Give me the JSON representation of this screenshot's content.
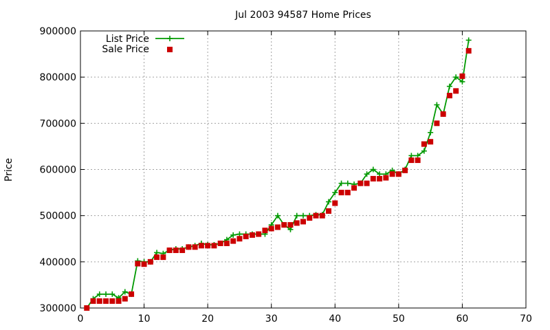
{
  "chart_data": {
    "type": "line",
    "title": "Jul 2003 94587 Home Prices",
    "xlabel": "",
    "ylabel": "Price",
    "xlim": [
      0,
      70
    ],
    "ylim": [
      300000,
      900000
    ],
    "x_ticks": [
      "0",
      "10",
      "20",
      "30",
      "40",
      "50",
      "60",
      "70"
    ],
    "y_ticks": [
      "300000",
      "400000",
      "500000",
      "600000",
      "700000",
      "800000",
      "900000"
    ],
    "grid": true,
    "legend_position": "top-left",
    "x": [
      1,
      2,
      3,
      4,
      5,
      6,
      7,
      8,
      9,
      10,
      11,
      12,
      13,
      14,
      15,
      16,
      17,
      18,
      19,
      20,
      21,
      22,
      23,
      24,
      25,
      26,
      27,
      28,
      29,
      30,
      31,
      32,
      33,
      34,
      35,
      36,
      37,
      38,
      39,
      40,
      41,
      42,
      43,
      44,
      45,
      46,
      47,
      48,
      49,
      50,
      51,
      52,
      53,
      54,
      55,
      56,
      57,
      58,
      59,
      60,
      61
    ],
    "series": [
      {
        "name": "List Price",
        "style": "line-with-plus-markers",
        "color": "#009900",
        "values": [
          300000,
          320000,
          330000,
          330000,
          330000,
          322000,
          335000,
          330000,
          402000,
          400000,
          400000,
          420000,
          418000,
          425000,
          428000,
          428000,
          432000,
          435000,
          440000,
          437000,
          437000,
          440000,
          448000,
          458000,
          460000,
          460000,
          460000,
          460000,
          460000,
          480000,
          500000,
          480000,
          470000,
          500000,
          500000,
          500000,
          502000,
          502000,
          530000,
          550000,
          570000,
          570000,
          568000,
          570000,
          590000,
          600000,
          590000,
          590000,
          598000,
          590000,
          600000,
          630000,
          630000,
          640000,
          680000,
          740000,
          720000,
          780000,
          800000,
          790000,
          880000
        ]
      },
      {
        "name": "Sale Price",
        "style": "square-markers",
        "color": "#cc0000",
        "values": [
          300000,
          315000,
          315000,
          315000,
          315000,
          315000,
          320000,
          330000,
          396000,
          395000,
          400000,
          410000,
          410000,
          425000,
          425000,
          425000,
          432000,
          432000,
          435000,
          435000,
          435000,
          440000,
          440000,
          445000,
          450000,
          455000,
          458000,
          460000,
          468000,
          472000,
          475000,
          480000,
          480000,
          484000,
          487000,
          495000,
          500000,
          500000,
          510000,
          527000,
          550000,
          550000,
          560000,
          570000,
          570000,
          580000,
          580000,
          582000,
          590000,
          590000,
          598000,
          620000,
          620000,
          655000,
          660000,
          700000,
          720000,
          760000,
          770000,
          802000,
          857000
        ]
      }
    ]
  }
}
